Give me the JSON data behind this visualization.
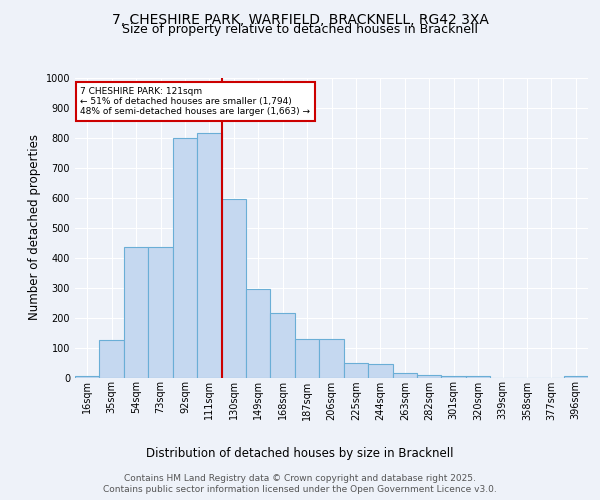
{
  "title_line1": "7, CHESHIRE PARK, WARFIELD, BRACKNELL, RG42 3XA",
  "title_line2": "Size of property relative to detached houses in Bracknell",
  "xlabel": "Distribution of detached houses by size in Bracknell",
  "ylabel": "Number of detached properties",
  "footer_line1": "Contains HM Land Registry data © Crown copyright and database right 2025.",
  "footer_line2": "Contains public sector information licensed under the Open Government Licence v3.0.",
  "bar_labels": [
    "16sqm",
    "35sqm",
    "54sqm",
    "73sqm",
    "92sqm",
    "111sqm",
    "130sqm",
    "149sqm",
    "168sqm",
    "187sqm",
    "206sqm",
    "225sqm",
    "244sqm",
    "263sqm",
    "282sqm",
    "301sqm",
    "320sqm",
    "339sqm",
    "358sqm",
    "377sqm",
    "396sqm"
  ],
  "bar_values": [
    5,
    125,
    435,
    435,
    800,
    815,
    595,
    295,
    215,
    130,
    130,
    50,
    45,
    15,
    10,
    5,
    5,
    0,
    0,
    0,
    5
  ],
  "bar_color": "#c5d8f0",
  "bar_edge_color": "#6aaed6",
  "vline_x_index": 6.0,
  "vline_color": "#cc0000",
  "annotation_text": "7 CHESHIRE PARK: 121sqm\n← 51% of detached houses are smaller (1,794)\n48% of semi-detached houses are larger (1,663) →",
  "annotation_box_color": "#ffffff",
  "annotation_box_edge_color": "#cc0000",
  "ylim": [
    0,
    1000
  ],
  "yticks": [
    0,
    100,
    200,
    300,
    400,
    500,
    600,
    700,
    800,
    900,
    1000
  ],
  "background_color": "#eef2f9",
  "plot_bg_color": "#eef2f9",
  "grid_color": "#ffffff",
  "title_fontsize": 10,
  "subtitle_fontsize": 9,
  "axis_label_fontsize": 8.5,
  "tick_fontsize": 7,
  "footer_fontsize": 6.5,
  "annotation_fontsize": 6.5
}
